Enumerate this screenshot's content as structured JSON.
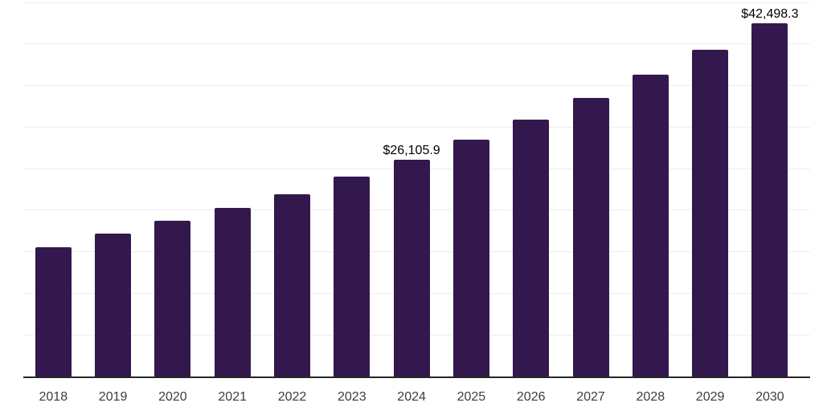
{
  "chart_data": {
    "type": "bar",
    "categories": [
      "2018",
      "2019",
      "2020",
      "2021",
      "2022",
      "2023",
      "2024",
      "2025",
      "2026",
      "2027",
      "2028",
      "2029",
      "2030"
    ],
    "values": [
      15500,
      17150,
      18700,
      20300,
      21950,
      24000,
      26105.9,
      28450,
      30900,
      33550,
      36350,
      39350,
      42498.3
    ],
    "data_labels": [
      {
        "category": "2024",
        "text": "$26,105.9"
      },
      {
        "category": "2030",
        "text": "$42,498.3"
      }
    ],
    "title": "",
    "xlabel": "",
    "ylabel": "",
    "ylim": [
      0,
      45000
    ],
    "grid_step": 5000,
    "grid": true,
    "legend": false,
    "colors": {
      "bar": "#33184d",
      "gridline": "#ededed",
      "axis": "#262626",
      "data_label": "#000000",
      "tick_label": "#3d3d3d",
      "background": "#ffffff"
    }
  }
}
